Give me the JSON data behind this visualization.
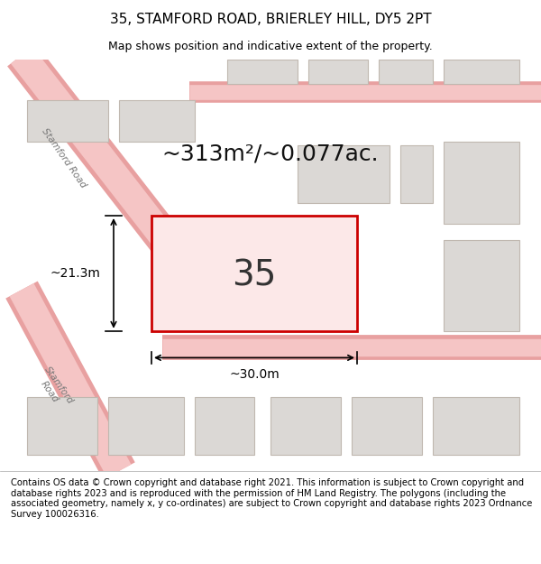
{
  "title": "35, STAMFORD ROAD, BRIERLEY HILL, DY5 2PT",
  "subtitle": "Map shows position and indicative extent of the property.",
  "footer": "Contains OS data © Crown copyright and database right 2021. This information is subject to Crown copyright and database rights 2023 and is reproduced with the permission of HM Land Registry. The polygons (including the associated geometry, namely x, y co-ordinates) are subject to Crown copyright and database rights 2023 Ordnance Survey 100026316.",
  "area_text": "~313m²/~0.077ac.",
  "number_label": "35",
  "dim_width": "~30.0m",
  "dim_height": "~21.3m",
  "map_bg": "#eeecea",
  "road_color": "#f5c5c5",
  "road_outline": "#e8a0a0",
  "building_color": "#dbd8d5",
  "building_outline": "#c0b8b0",
  "highlight_edgecolor": "#cc0000",
  "highlight_fill": "#fce8e8",
  "title_fontsize": 11,
  "subtitle_fontsize": 9,
  "footer_fontsize": 7.2,
  "area_fontsize": 18,
  "number_fontsize": 28,
  "dim_fontsize": 10
}
